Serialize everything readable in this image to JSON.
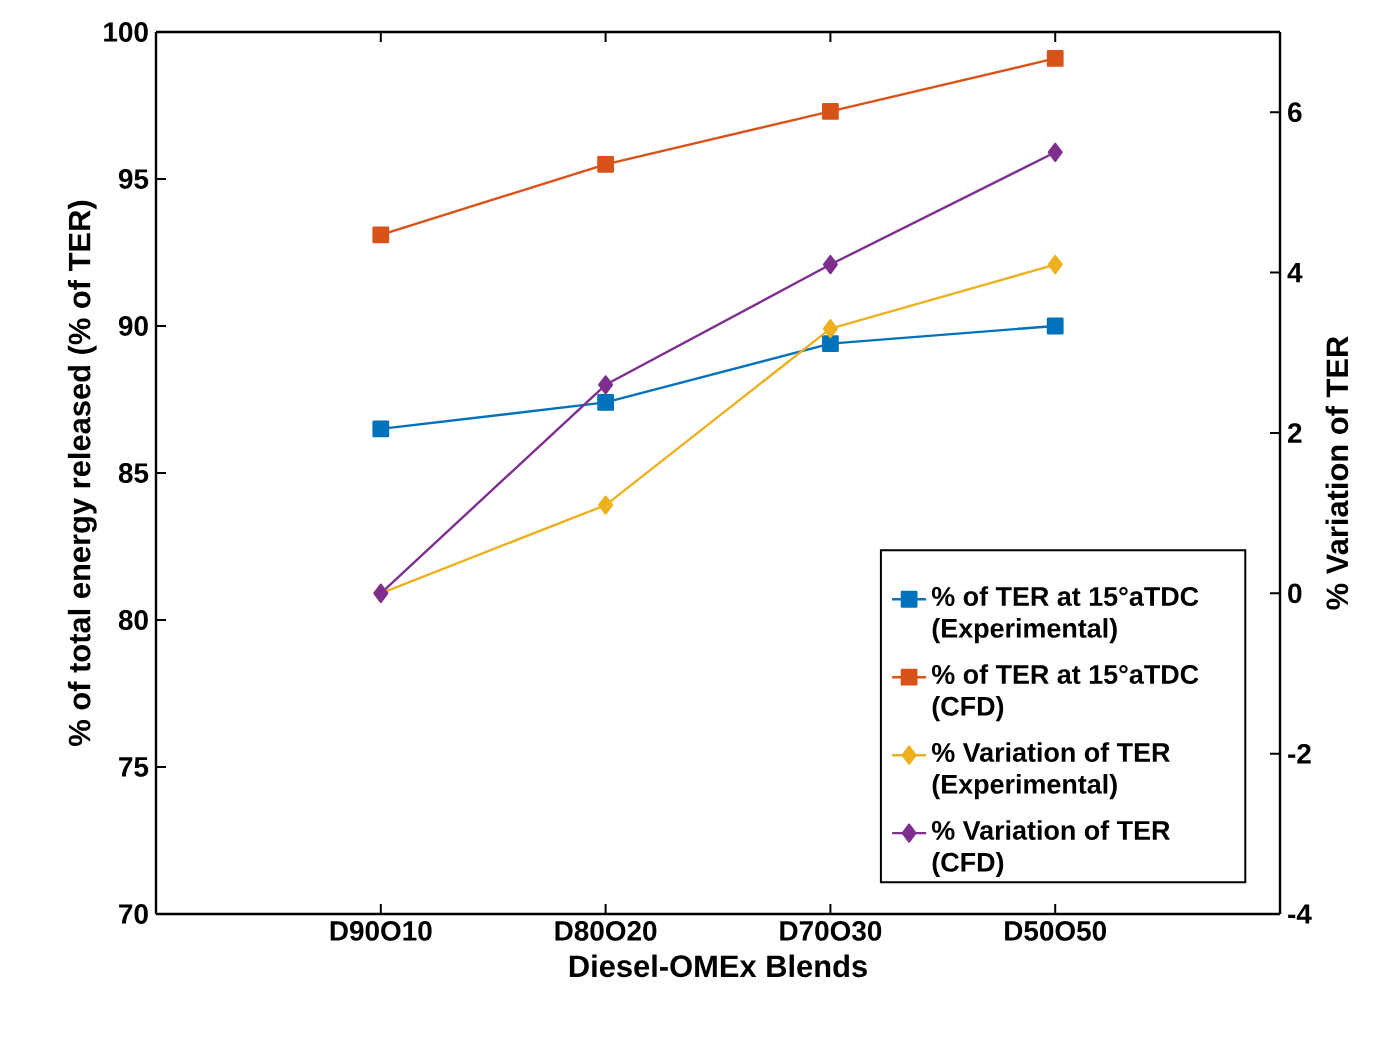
{
  "chart_data": {
    "type": "line",
    "xlabel": "Diesel-OMEx Blends",
    "ylabel": "% of total energy released (% of TER)",
    "y2label": "% Variation of TER",
    "categories": [
      "D90O10",
      "D80O20",
      "D70O30",
      "D50O50"
    ],
    "ylim": [
      70,
      100
    ],
    "yticks": [
      70,
      75,
      80,
      85,
      90,
      95,
      100
    ],
    "y2lim": [
      -4,
      7
    ],
    "y2ticks": [
      -4,
      -2,
      0,
      2,
      4,
      6
    ],
    "legend": "bottom right",
    "series": [
      {
        "name": "% of TER at 15°aTDC (Experimental)",
        "color": "#0072bd",
        "marker": "square",
        "values": [
          86.5,
          87.4,
          89.4,
          90.0
        ]
      },
      {
        "name": "% of TER at 15°aTDC (CFD)",
        "color": "#d95319",
        "marker": "square",
        "values": [
          93.1,
          95.5,
          97.3,
          99.1
        ]
      },
      {
        "name": "% Variation of TER (Experimental)",
        "color": "#edb120",
        "marker": "diamond",
        "axis": "y2",
        "values": [
          0,
          1.1,
          3.3,
          4.1
        ]
      },
      {
        "name": "% Variation of TER (CFD)",
        "color": "#7e2f8e",
        "marker": "diamond",
        "axis": "y2",
        "values": [
          0,
          2.6,
          4.1,
          5.5
        ]
      }
    ]
  }
}
